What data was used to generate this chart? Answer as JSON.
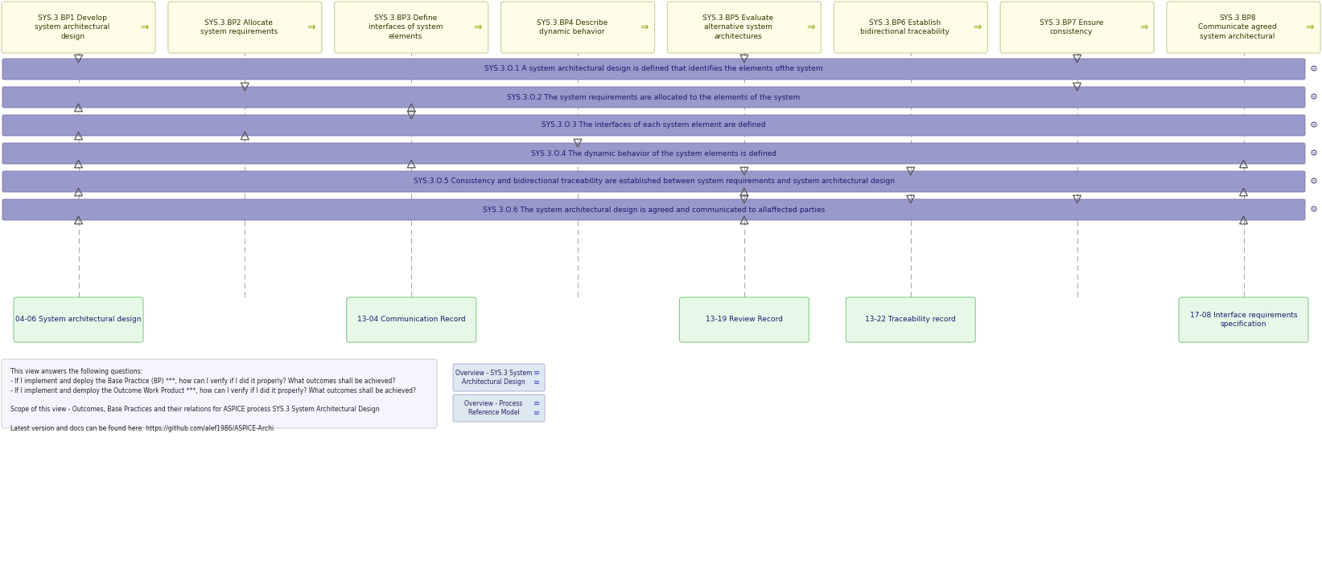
{
  "bg_color": "#ffffff",
  "bp_boxes": [
    {
      "label": "SYS.3.BP1 Develop\nsystem architectural\ndesign"
    },
    {
      "label": "SYS.3.BP2 Allocate\nsystem requirements"
    },
    {
      "label": "SYS.3.BP3 Define\ninterfaces of system\nelements"
    },
    {
      "label": "SYS.3.BP4 Describe\ndynamic behavior"
    },
    {
      "label": "SYS.3.BP5 Evaluate\nalternative system\narchitectures"
    },
    {
      "label": "SYS.3.BP6 Establish\nbidirectional traceability"
    },
    {
      "label": "SYS.3.BP7 Ensure\nconsistency"
    },
    {
      "label": "SYS.3.BP8\nCommunicate agreed\nsystem architectural"
    }
  ],
  "bp_box_color": "#fefee8",
  "bp_box_edge": "#cccc99",
  "bp_text_color": "#333300",
  "outcome_rows": [
    {
      "label": "SYS.3.O.1 A system architectural design is defined that identifies the elements ofthe system",
      "down_bps": [
        0,
        4,
        6
      ],
      "up_bps": []
    },
    {
      "label": "SYS.3.O.2 The system requirements are allocated to the elements of the system",
      "down_bps": [
        1,
        6
      ],
      "up_bps": [
        0,
        2
      ]
    },
    {
      "label": "SYS.3.O.3 The interfaces of each system element are defined",
      "down_bps": [
        2
      ],
      "up_bps": [
        0,
        1
      ]
    },
    {
      "label": "SYS.3.O.4 The dynamic behavior of the system elements is defined",
      "down_bps": [
        3
      ],
      "up_bps": [
        0,
        2,
        7
      ]
    },
    {
      "label": "SYS.3.O.5 Consistency and bidirectional traceability are established between system requirements and system architectural design",
      "down_bps": [
        4,
        5
      ],
      "up_bps": [
        0,
        4,
        7
      ]
    },
    {
      "label": "SYS.3.O.6 The system architectural design is agreed and communicated to allaffected parties",
      "down_bps": [
        4,
        5,
        6
      ],
      "up_bps": [
        0,
        4,
        7
      ]
    }
  ],
  "outcome_bar_color": "#9999cc",
  "outcome_bar_edge": "#7777aa",
  "outcome_text_color": "#1a1a6e",
  "wp_entries": [
    {
      "label": "04-06 System architectural design",
      "bp_col": 0
    },
    {
      "label": "13-04 Communication Record",
      "bp_col": 2
    },
    {
      "label": "13-19 Review Record",
      "bp_col": 4
    },
    {
      "label": "13-22 Traceability record",
      "bp_col": 5
    },
    {
      "label": "17-08 Interface requirements\nspecification",
      "bp_col": 7
    }
  ],
  "wp_box_color": "#e8f8e8",
  "wp_box_edge": "#88cc88",
  "wp_text_color": "#1a1a6e",
  "bottom_text_line1": "This view answers the following questions:",
  "bottom_text_line2": "- If I implement and deploy the Base Practice (BP) ***, how can I verify if I did it properly? What outcomes shall be achieved?",
  "bottom_text_line3": "- If I implement and demploy the Outcome Work Product ***, how can I verify if I did it properly? What outcomes shall be achieved?",
  "bottom_text_line4": "Scope of this view - Outcomes, Base Practices and their relations for ASPICE process SYS.3 System Architectural Design",
  "bottom_text_line5": "Latest version and docs can be found here: https://github.com/alef1986/ASPICE-Archi",
  "link_box1": "Overview - SYS.3 System\nArchitectural Design",
  "link_box2": "Overview - Process\nReference Model"
}
